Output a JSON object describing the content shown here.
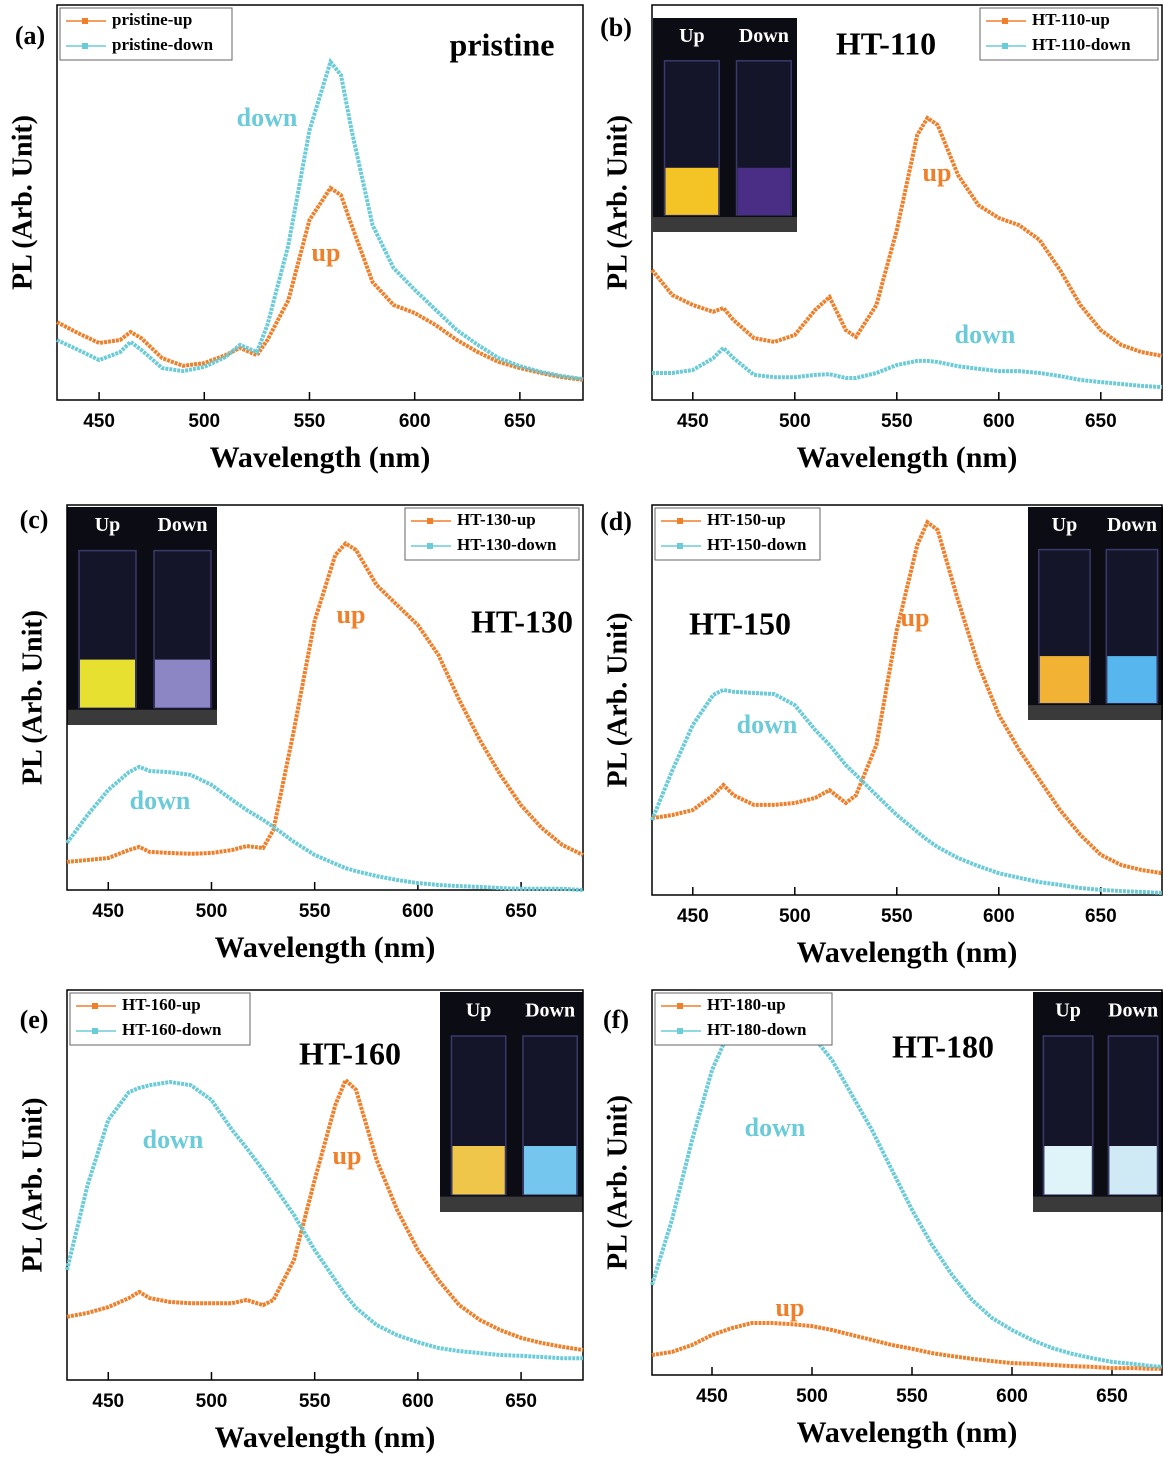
{
  "chart_data": [
    {
      "type": "line",
      "label": "(a)",
      "title": "pristine",
      "x_label": "Wavelength (nm)",
      "y_label": "PL (Arb. Unit)",
      "xlim": [
        430,
        680
      ],
      "xticks": [
        450,
        500,
        550,
        600,
        650
      ],
      "ylim": [
        0,
        100
      ],
      "legend": "upper left",
      "x": [
        430,
        440,
        450,
        460,
        465,
        470,
        480,
        490,
        500,
        510,
        517,
        525,
        530,
        540,
        550,
        560,
        565,
        570,
        580,
        590,
        600,
        610,
        620,
        630,
        640,
        650,
        660,
        670,
        680
      ],
      "series": [
        {
          "name": "pristine-up",
          "color": "#f07f2a",
          "values": [
            20.5,
            17.6,
            15,
            15.8,
            17.9,
            16.3,
            11,
            9,
            9.7,
            11.8,
            13.7,
            11.8,
            15.8,
            26.3,
            47.4,
            55.8,
            53.9,
            46,
            31,
            25,
            22.9,
            19.7,
            15.8,
            12.6,
            10,
            8.4,
            7.1,
            6,
            5.3
          ]
        },
        {
          "name": "pristine-down",
          "color": "#6ccbd8",
          "values": [
            15.8,
            13.2,
            10.5,
            12.6,
            15.3,
            13.2,
            8.4,
            7.6,
            8.7,
            11.3,
            14.5,
            12.6,
            19.7,
            40.8,
            71,
            89,
            85.5,
            71,
            46,
            34.7,
            29,
            23.7,
            18.4,
            14.5,
            11,
            8.9,
            7.4,
            6.3,
            5.5
          ]
        }
      ],
      "annotations": [
        "down",
        "up"
      ]
    },
    {
      "type": "line",
      "label": "(b)",
      "title": "HT-110",
      "x_label": "Wavelength (nm)",
      "y_label": "PL (Arb. Unit)",
      "xlim": [
        430,
        680
      ],
      "xticks": [
        450,
        500,
        550,
        600,
        650
      ],
      "ylim": [
        0,
        100
      ],
      "legend": "upper right",
      "x": [
        430,
        440,
        450,
        460,
        465,
        470,
        480,
        490,
        500,
        510,
        517,
        525,
        530,
        540,
        550,
        560,
        565,
        570,
        580,
        590,
        600,
        610,
        620,
        630,
        640,
        650,
        660,
        670,
        680
      ],
      "series": [
        {
          "name": "HT-110-up",
          "color": "#f07f2a",
          "values": [
            34.2,
            27.6,
            25,
            23.2,
            24.2,
            21,
            16.3,
            15.3,
            17.1,
            23.7,
            27.1,
            18.4,
            16.6,
            25,
            44.7,
            69.7,
            74.2,
            72.4,
            59.2,
            51.3,
            47.9,
            46,
            42.1,
            34.2,
            25,
            18.4,
            14.5,
            12.6,
            11.6
          ]
        },
        {
          "name": "HT-110-down",
          "color": "#6ccbd8",
          "values": [
            7.1,
            7.1,
            7.9,
            11,
            13.7,
            11,
            6.6,
            6,
            6,
            6.6,
            6.8,
            5.8,
            5.8,
            7.1,
            9.2,
            10.3,
            10.3,
            10,
            8.9,
            8.2,
            7.6,
            7.6,
            7.1,
            6.3,
            5.3,
            4.7,
            4.2,
            3.7,
            3.4
          ]
        }
      ],
      "annotations": [
        "up",
        "down"
      ],
      "inset": [
        "Up",
        "Down"
      ]
    },
    {
      "type": "line",
      "label": "(c)",
      "title": "HT-130",
      "x_label": "Wavelength (nm)",
      "y_label": "PL (Arb. Unit)",
      "xlim": [
        430,
        680
      ],
      "xticks": [
        450,
        500,
        550,
        600,
        650
      ],
      "ylim": [
        0,
        100
      ],
      "legend": "upper right",
      "x": [
        430,
        440,
        450,
        460,
        465,
        470,
        480,
        490,
        500,
        510,
        517,
        525,
        530,
        540,
        550,
        560,
        565,
        570,
        580,
        590,
        600,
        610,
        620,
        630,
        640,
        650,
        660,
        670,
        680
      ],
      "series": [
        {
          "name": "HT-130-up",
          "color": "#f07f2a",
          "values": [
            7.3,
            7.8,
            8.3,
            10.4,
            11.2,
            9.9,
            9.6,
            9.4,
            9.6,
            10.4,
            11.4,
            10.9,
            15.6,
            41.6,
            70,
            87,
            90,
            88.3,
            79.2,
            74,
            68.8,
            61,
            49.4,
            39,
            29.9,
            22,
            16.1,
            11.7,
            9.1
          ]
        },
        {
          "name": "HT-130-down",
          "color": "#6ccbd8",
          "values": [
            12.2,
            19.5,
            26,
            30.6,
            32,
            30.9,
            30.6,
            29.9,
            27.3,
            23.4,
            20.8,
            18.2,
            16.4,
            12.5,
            9.1,
            6.8,
            5.7,
            4.9,
            3.6,
            2.6,
            1.8,
            1.3,
            1,
            0.8,
            0.5,
            0.3,
            0.3,
            0.3,
            0
          ]
        }
      ],
      "annotations": [
        "up",
        "down"
      ],
      "inset": [
        "Up",
        "Down"
      ]
    },
    {
      "type": "line",
      "label": "(d)",
      "title": "HT-150",
      "x_label": "Wavelength (nm)",
      "y_label": "PL (Arb. Unit)",
      "xlim": [
        430,
        680
      ],
      "xticks": [
        450,
        500,
        550,
        600,
        650
      ],
      "ylim": [
        0,
        100
      ],
      "legend": "upper left",
      "x": [
        430,
        440,
        450,
        460,
        465,
        470,
        480,
        490,
        500,
        510,
        517,
        525,
        530,
        540,
        550,
        560,
        565,
        570,
        580,
        590,
        600,
        610,
        620,
        630,
        640,
        650,
        660,
        670,
        680
      ],
      "series": [
        {
          "name": "HT-150-up",
          "color": "#f07f2a",
          "values": [
            19.7,
            20.5,
            21.8,
            25.6,
            28.2,
            25.6,
            23.1,
            23.1,
            23.6,
            24.9,
            26.9,
            23.6,
            25.6,
            38.5,
            67.9,
            89.7,
            95.6,
            93.6,
            75.6,
            59,
            46.2,
            37.2,
            29.5,
            21.8,
            15.4,
            10.3,
            7.7,
            6.4,
            5.6
          ]
        },
        {
          "name": "HT-150-down",
          "color": "#6ccbd8",
          "values": [
            19.2,
            32,
            43.6,
            51.3,
            52.6,
            52.1,
            51.8,
            51.5,
            48.7,
            42.3,
            38.5,
            33.3,
            30.8,
            25.6,
            20.5,
            16.2,
            14.1,
            12.3,
            9.5,
            7.4,
            5.6,
            4.4,
            3.3,
            2.6,
            1.8,
            1.3,
            1,
            0.8,
            0.5
          ]
        }
      ],
      "annotations": [
        "up",
        "down"
      ],
      "inset": [
        "Up",
        "Down"
      ]
    },
    {
      "type": "line",
      "label": "(e)",
      "title": "HT-160",
      "x_label": "Wavelength (nm)",
      "y_label": "PL (Arb. Unit)",
      "xlim": [
        430,
        680
      ],
      "xticks": [
        450,
        500,
        550,
        600,
        650
      ],
      "ylim": [
        0,
        100
      ],
      "legend": "upper left",
      "x": [
        430,
        440,
        450,
        460,
        465,
        470,
        480,
        490,
        500,
        510,
        517,
        525,
        530,
        540,
        550,
        560,
        565,
        570,
        580,
        590,
        600,
        610,
        620,
        630,
        640,
        650,
        660,
        670,
        680
      ],
      "series": [
        {
          "name": "HT-160-up",
          "color": "#f07f2a",
          "values": [
            16.2,
            17.2,
            18.7,
            21,
            22.6,
            21,
            20,
            19.7,
            19.7,
            19.7,
            20.5,
            19.2,
            20.5,
            30.8,
            51.3,
            70.5,
            76.9,
            74.4,
            56.4,
            43.6,
            33.3,
            25.6,
            19.2,
            15.4,
            12.8,
            10.8,
            9.5,
            8.5,
            7.7
          ]
        },
        {
          "name": "HT-160-down",
          "color": "#6ccbd8",
          "values": [
            28.2,
            50,
            66.7,
            73.8,
            74.9,
            75.6,
            76.4,
            75.6,
            71.8,
            64.1,
            59.5,
            53.8,
            50,
            42.3,
            33.3,
            25.6,
            21.8,
            18.5,
            14.1,
            11.5,
            9.7,
            8.2,
            7.4,
            6.9,
            6.4,
            6.2,
            5.9,
            5.6,
            5.6
          ]
        }
      ],
      "annotations": [
        "down",
        "up"
      ],
      "inset": [
        "Up",
        "Down"
      ]
    },
    {
      "type": "line",
      "label": "(f)",
      "title": "HT-180",
      "x_label": "Wavelength (nm)",
      "y_label": "PL (Arb. Unit)",
      "xlim": [
        420,
        675
      ],
      "xticks": [
        450,
        500,
        550,
        600,
        650
      ],
      "ylim": [
        0,
        100
      ],
      "legend": "upper left",
      "x": [
        420,
        430,
        440,
        450,
        460,
        470,
        480,
        490,
        500,
        510,
        520,
        530,
        540,
        550,
        560,
        570,
        580,
        590,
        600,
        610,
        620,
        630,
        640,
        650,
        660,
        670,
        675
      ],
      "series": [
        {
          "name": "HT-180-up",
          "color": "#f07f2a",
          "values": [
            5.2,
            6,
            7.8,
            10.4,
            12.2,
            13.5,
            13.5,
            13.2,
            12.7,
            11.7,
            10.4,
            9.1,
            7.8,
            6.8,
            5.7,
            4.9,
            4.2,
            3.6,
            3.1,
            2.9,
            2.6,
            2.3,
            2.1,
            1.8,
            1.8,
            1.6,
            1.6
          ]
        },
        {
          "name": "HT-180-down",
          "color": "#6ccbd8",
          "values": [
            23.4,
            40.3,
            61,
            79.2,
            90.9,
            95.3,
            95.3,
            93.5,
            88.3,
            81.8,
            72.7,
            63.6,
            53.2,
            42.9,
            33.8,
            26,
            19.5,
            14.8,
            11.7,
            9.1,
            7,
            5.5,
            4.4,
            3.4,
            2.9,
            2.3,
            2.1
          ]
        }
      ],
      "annotations": [
        "down",
        "up"
      ],
      "inset": [
        "Up",
        "Down"
      ]
    }
  ]
}
